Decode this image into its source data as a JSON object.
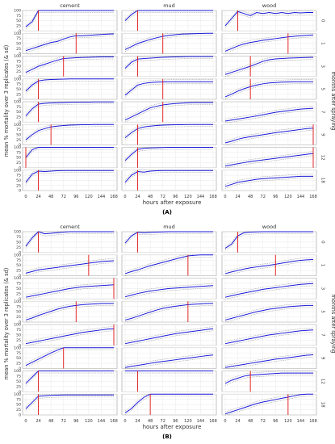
{
  "chart_data": [
    {
      "type": "line",
      "panel_label": "(A)",
      "facet_columns": [
        "cement",
        "mud",
        "wood"
      ],
      "facet_rows": [
        "0",
        "1",
        "3",
        "5",
        "7",
        "9",
        "12",
        "18"
      ],
      "x": [
        0,
        12,
        24,
        36,
        48,
        60,
        72,
        84,
        96,
        108,
        120,
        132,
        144,
        156,
        168
      ],
      "x_ticks": [
        "0",
        "24",
        "48",
        "72",
        "96",
        "120",
        "144",
        "168"
      ],
      "y_ticks": [
        "0",
        "25",
        "50",
        "75",
        "100"
      ],
      "ylim": [
        0,
        100
      ],
      "xlabel": "hours after exposure",
      "ylabel": "mean % mortality over 3 replicates (& sd)",
      "right_label": "months after spraying",
      "series": [
        {
          "name": "cement-0",
          "values": [
            20,
            45,
            100,
            100,
            100,
            100,
            100,
            100,
            100,
            100,
            100,
            100,
            100,
            100,
            100
          ],
          "lt50": 24
        },
        {
          "name": "mud-0",
          "values": [
            50,
            80,
            100,
            100,
            100,
            100,
            100,
            100,
            100,
            100,
            100,
            100,
            100,
            100,
            100
          ],
          "lt50": 24
        },
        {
          "name": "wood-0",
          "values": [
            25,
            60,
            95,
            85,
            75,
            90,
            85,
            90,
            85,
            90,
            85,
            90,
            88,
            90,
            90
          ],
          "lt50": 24
        },
        {
          "name": "cement-1",
          "values": [
            15,
            25,
            35,
            45,
            55,
            60,
            72,
            82,
            88,
            88,
            90,
            92,
            94,
            96,
            97
          ],
          "lt50": 96
        },
        {
          "name": "mud-1",
          "values": [
            20,
            35,
            50,
            60,
            70,
            78,
            85,
            90,
            93,
            96,
            97,
            98,
            99,
            100,
            100
          ],
          "lt50": 72
        },
        {
          "name": "wood-1",
          "values": [
            12,
            25,
            38,
            48,
            55,
            60,
            66,
            70,
            74,
            78,
            82,
            85,
            88,
            90,
            92
          ],
          "lt50": 120
        },
        {
          "name": "cement-3",
          "values": [
            20,
            35,
            50,
            60,
            70,
            80,
            88,
            90,
            92,
            93,
            94,
            95,
            96,
            96,
            96
          ],
          "lt50": 72
        },
        {
          "name": "mud-3",
          "values": [
            40,
            70,
            85,
            88,
            90,
            92,
            94,
            95,
            96,
            97,
            98,
            98,
            98,
            98,
            98
          ],
          "lt50": 24
        },
        {
          "name": "wood-3",
          "values": [
            10,
            20,
            30,
            40,
            50,
            62,
            74,
            82,
            86,
            88,
            90,
            91,
            92,
            93,
            94
          ],
          "lt50": 48
        },
        {
          "name": "cement-5",
          "values": [
            40,
            70,
            90,
            95,
            97,
            98,
            99,
            100,
            100,
            100,
            100,
            100,
            100,
            100,
            100
          ],
          "lt50": 24
        },
        {
          "name": "mud-5",
          "values": [
            20,
            45,
            70,
            78,
            82,
            84,
            85,
            86,
            86,
            86,
            86,
            86,
            86,
            86,
            86
          ],
          "lt50": 72
        },
        {
          "name": "wood-5",
          "values": [
            12,
            25,
            40,
            52,
            62,
            70,
            76,
            80,
            82,
            84,
            85,
            86,
            86,
            86,
            86
          ],
          "lt50": 48
        },
        {
          "name": "cement-7",
          "values": [
            30,
            65,
            88,
            92,
            94,
            95,
            96,
            97,
            98,
            98,
            98,
            99,
            99,
            99,
            99
          ],
          "lt50": 24
        },
        {
          "name": "mud-7",
          "values": [
            10,
            25,
            40,
            55,
            70,
            78,
            84,
            88,
            91,
            93,
            95,
            96,
            96,
            96,
            96
          ],
          "lt50": 72
        },
        {
          "name": "wood-7",
          "values": [
            5,
            10,
            15,
            20,
            25,
            30,
            36,
            42,
            48,
            52,
            56,
            60,
            64,
            66,
            68
          ],
          "lt50": null
        },
        {
          "name": "cement-9",
          "values": [
            25,
            50,
            70,
            80,
            88,
            92,
            95,
            97,
            98,
            99,
            99,
            100,
            100,
            100,
            100
          ],
          "lt50": 48
        },
        {
          "name": "mud-9",
          "values": [
            35,
            60,
            80,
            88,
            92,
            95,
            97,
            98,
            99,
            99,
            100,
            100,
            100,
            100,
            100
          ],
          "lt50": 24
        },
        {
          "name": "wood-9",
          "values": [
            10,
            18,
            28,
            35,
            40,
            45,
            50,
            55,
            60,
            64,
            68,
            72,
            76,
            80,
            82
          ],
          "lt50": 168
        },
        {
          "name": "cement-12",
          "values": [
            50,
            88,
            100,
            100,
            100,
            100,
            100,
            100,
            100,
            100,
            100,
            100,
            100,
            100,
            100
          ],
          "lt50": 0
        },
        {
          "name": "mud-12",
          "values": [
            35,
            65,
            90,
            95,
            97,
            98,
            99,
            100,
            100,
            100,
            100,
            100,
            100,
            100,
            100
          ],
          "lt50": 24
        },
        {
          "name": "wood-12",
          "values": [
            8,
            14,
            20,
            25,
            30,
            34,
            38,
            42,
            46,
            50,
            54,
            58,
            62,
            66,
            70
          ],
          "lt50": 168
        },
        {
          "name": "cement-18",
          "values": [
            40,
            80,
            95,
            93,
            95,
            97,
            98,
            98,
            98,
            98,
            98,
            98,
            98,
            98,
            98
          ],
          "lt50": 24
        },
        {
          "name": "mud-18",
          "values": [
            40,
            75,
            93,
            90,
            95,
            97,
            98,
            98,
            98,
            98,
            98,
            98,
            98,
            98,
            98
          ],
          "lt50": 24
        },
        {
          "name": "wood-18",
          "values": [
            20,
            30,
            40,
            45,
            50,
            55,
            58,
            60,
            62,
            64,
            66,
            68,
            70,
            70,
            70
          ],
          "lt50": null
        }
      ]
    },
    {
      "type": "line",
      "panel_label": "(B)",
      "facet_columns": [
        "cement",
        "mud",
        "wood"
      ],
      "facet_rows": [
        "0",
        "1",
        "3",
        "5",
        "7",
        "9",
        "12",
        "18"
      ],
      "x": [
        0,
        12,
        24,
        36,
        48,
        60,
        72,
        84,
        96,
        108,
        120,
        132,
        144,
        156,
        168
      ],
      "x_ticks": [
        "0",
        "24",
        "48",
        "72",
        "96",
        "120",
        "144",
        "168"
      ],
      "y_ticks": [
        "0",
        "25",
        "50",
        "75",
        "100"
      ],
      "ylim": [
        0,
        100
      ],
      "xlabel": "hours after exposure",
      "ylabel": "mean % mortality over 3 replicates (& sd)",
      "right_label": "months after spraying",
      "series": [
        {
          "name": "cement-0",
          "values": [
            30,
            70,
            100,
            90,
            92,
            95,
            98,
            100,
            100,
            100,
            100,
            100,
            100,
            100,
            100
          ],
          "lt50": 24
        },
        {
          "name": "mud-0",
          "values": [
            45,
            80,
            97,
            95,
            97,
            98,
            99,
            100,
            100,
            100,
            100,
            100,
            100,
            100,
            100
          ],
          "lt50": 24
        },
        {
          "name": "wood-0",
          "values": [
            20,
            40,
            80,
            95,
            98,
            99,
            100,
            100,
            100,
            100,
            100,
            100,
            100,
            100,
            100
          ],
          "lt50": 24
        },
        {
          "name": "cement-1",
          "values": [
            12,
            20,
            28,
            32,
            36,
            40,
            44,
            48,
            52,
            56,
            60,
            64,
            68,
            70,
            72
          ],
          "lt50": 120
        },
        {
          "name": "mud-1",
          "values": [
            10,
            20,
            28,
            38,
            48,
            56,
            64,
            72,
            80,
            88,
            95,
            98,
            100,
            100,
            100
          ],
          "lt50": 120
        },
        {
          "name": "wood-1",
          "values": [
            10,
            18,
            25,
            32,
            38,
            42,
            46,
            50,
            55,
            60,
            65,
            70,
            74,
            76,
            78
          ],
          "lt50": 96
        },
        {
          "name": "cement-3",
          "values": [
            8,
            14,
            20,
            26,
            32,
            38,
            44,
            50,
            54,
            58,
            60,
            62,
            64,
            66,
            68
          ],
          "lt50": 168
        },
        {
          "name": "mud-3",
          "values": [
            10,
            18,
            26,
            32,
            38,
            42,
            46,
            50,
            52,
            54,
            56,
            58,
            60,
            62,
            64
          ],
          "lt50": null
        },
        {
          "name": "wood-3",
          "values": [
            8,
            15,
            22,
            28,
            34,
            40,
            46,
            50,
            54,
            58,
            62,
            66,
            70,
            72,
            74
          ],
          "lt50": null
        },
        {
          "name": "cement-5",
          "values": [
            10,
            20,
            32,
            42,
            52,
            62,
            70,
            76,
            80,
            84,
            86,
            88,
            90,
            90,
            90
          ],
          "lt50": 96
        },
        {
          "name": "mud-5",
          "values": [
            10,
            18,
            28,
            38,
            48,
            58,
            66,
            72,
            76,
            80,
            84,
            86,
            88,
            90,
            90
          ],
          "lt50": 120
        },
        {
          "name": "wood-5",
          "values": [
            10,
            18,
            26,
            34,
            42,
            50,
            56,
            62,
            66,
            70,
            74,
            76,
            78,
            80,
            80
          ],
          "lt50": null
        },
        {
          "name": "cement-7",
          "values": [
            8,
            14,
            20,
            26,
            32,
            38,
            44,
            50,
            56,
            62,
            66,
            70,
            74,
            78,
            80
          ],
          "lt50": 168
        },
        {
          "name": "mud-7",
          "values": [
            8,
            14,
            20,
            26,
            32,
            38,
            44,
            50,
            56,
            60,
            64,
            68,
            72,
            76,
            80
          ],
          "lt50": null
        },
        {
          "name": "wood-7",
          "values": [
            8,
            14,
            20,
            26,
            32,
            38,
            44,
            50,
            54,
            58,
            62,
            66,
            70,
            72,
            74
          ],
          "lt50": null
        },
        {
          "name": "cement-9",
          "values": [
            15,
            30,
            45,
            60,
            75,
            88,
            100,
            100,
            100,
            100,
            100,
            100,
            100,
            100,
            100
          ],
          "lt50": 72
        },
        {
          "name": "mud-9",
          "values": [
            5,
            10,
            15,
            20,
            25,
            30,
            34,
            38,
            42,
            46,
            50,
            54,
            58,
            62,
            65
          ],
          "lt50": null
        },
        {
          "name": "wood-9",
          "values": [
            5,
            10,
            15,
            20,
            25,
            30,
            35,
            40,
            45,
            48,
            52,
            56,
            60,
            64,
            66
          ],
          "lt50": null
        },
        {
          "name": "cement-12",
          "values": [
            40,
            70,
            100,
            100,
            100,
            100,
            100,
            100,
            100,
            100,
            100,
            100,
            100,
            100,
            100
          ],
          "lt50": 24
        },
        {
          "name": "mud-12",
          "values": [
            100,
            100,
            100,
            100,
            100,
            100,
            100,
            100,
            100,
            100,
            100,
            100,
            100,
            100,
            100
          ],
          "lt50": 24
        },
        {
          "name": "wood-12",
          "values": [
            40,
            55,
            65,
            75,
            80,
            82,
            84,
            86,
            88,
            90,
            90,
            90,
            90,
            90,
            90
          ],
          "lt50": 48
        },
        {
          "name": "cement-18",
          "values": [
            30,
            60,
            90,
            92,
            94,
            95,
            96,
            96,
            96,
            96,
            96,
            96,
            96,
            96,
            96
          ],
          "lt50": 24
        },
        {
          "name": "mud-18",
          "values": [
            10,
            30,
            60,
            85,
            100,
            100,
            100,
            100,
            100,
            100,
            100,
            100,
            100,
            100,
            100
          ],
          "lt50": 48
        },
        {
          "name": "wood-18",
          "values": [
            5,
            15,
            25,
            35,
            45,
            55,
            62,
            68,
            74,
            80,
            86,
            92,
            98,
            100,
            100
          ],
          "lt50": 120
        }
      ]
    }
  ],
  "colors": {
    "mean_line": "#1a1ad9",
    "sd_band": "#8a8a8a",
    "lt50_marker": "#e01414",
    "grid": "#e4e4e4",
    "panel_border": "#9a9a9a",
    "text": "#333333"
  }
}
